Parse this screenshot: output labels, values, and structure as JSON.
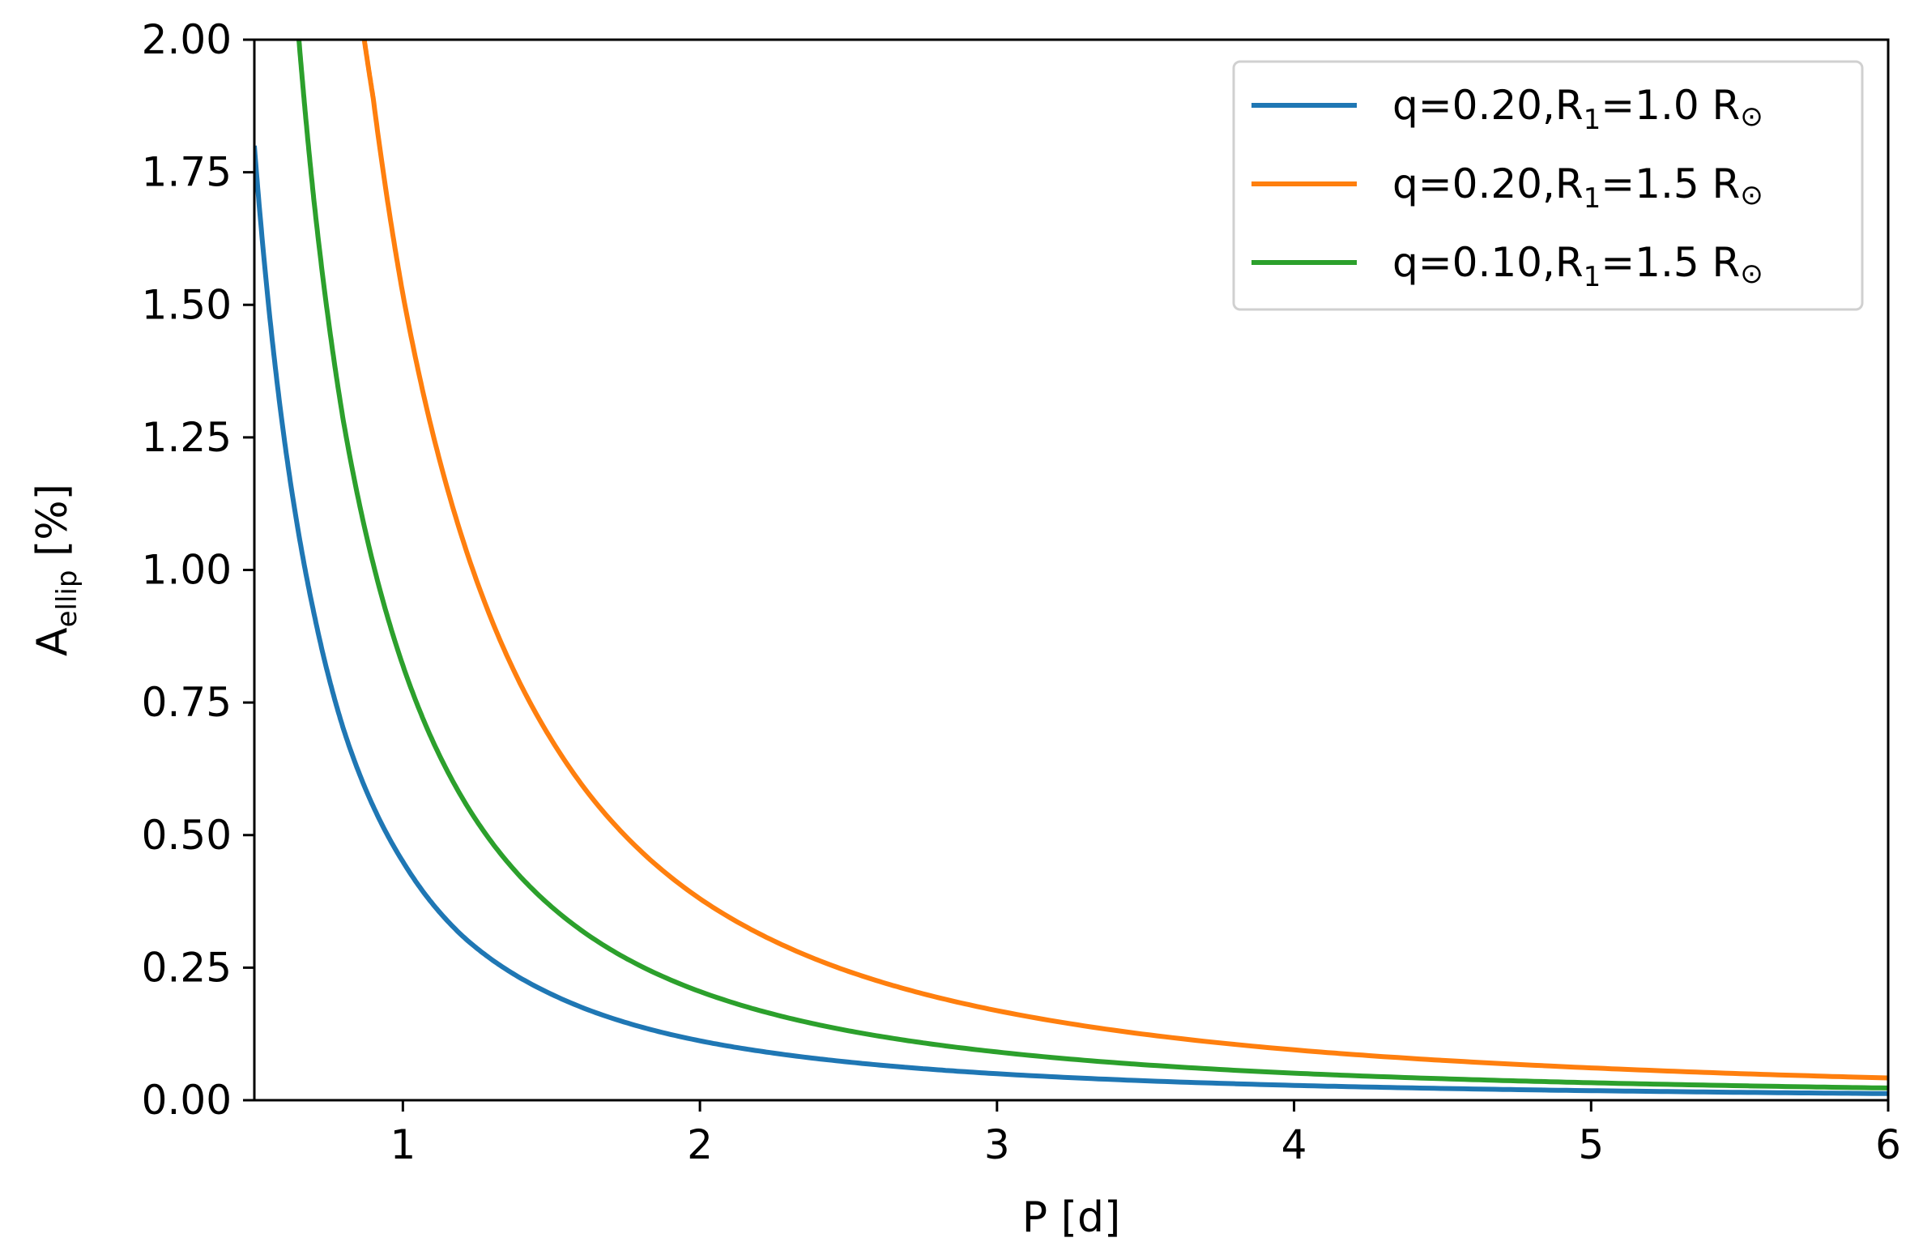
{
  "chart_data": {
    "type": "line",
    "xlabel": "P [d]",
    "ylabel": {
      "main": "A",
      "sub": "ellip",
      "rest": " [%]"
    },
    "xlim": [
      0.5,
      6
    ],
    "ylim": [
      0,
      2
    ],
    "xticks": [
      1,
      2,
      3,
      4,
      5,
      6
    ],
    "xtick_labels": [
      "1",
      "2",
      "3",
      "4",
      "5",
      "6"
    ],
    "yticks": [
      0,
      0.25,
      0.5,
      0.75,
      1.0,
      1.25,
      1.5,
      1.75,
      2.0
    ],
    "ytick_labels": [
      "0.00",
      "0.25",
      "0.50",
      "0.75",
      "1.00",
      "1.25",
      "1.50",
      "1.75",
      "2.00"
    ],
    "grid": false,
    "legend_position": "top-right",
    "series": [
      {
        "name": "q=0.20,R1=1.0 R⊙",
        "legend": {
          "pre": "q=0.20,R",
          "sub": "1",
          "post": "=1.0 R",
          "symbol": "⊙"
        },
        "color": "#1f77b4",
        "x": [
          0.5,
          0.6,
          0.7,
          0.8,
          1.0,
          1.2,
          1.5,
          2.0,
          2.5,
          3.0,
          4.0,
          5.0,
          6.0
        ],
        "y": [
          1.8,
          1.25,
          0.92,
          0.7,
          0.45,
          0.31,
          0.2,
          0.112,
          0.072,
          0.05,
          0.028,
          0.018,
          0.0125
        ]
      },
      {
        "name": "q=0.20,R1=1.5 R⊙",
        "legend": {
          "pre": "q=0.20,R",
          "sub": "1",
          "post": "=1.5 R",
          "symbol": "⊙"
        },
        "color": "#ff7f0e",
        "x": [
          0.87,
          0.9,
          1.0,
          1.2,
          1.5,
          2.0,
          2.5,
          3.0,
          4.0,
          5.0,
          6.0
        ],
        "y": [
          2.0,
          1.89,
          1.52,
          1.06,
          0.68,
          0.38,
          0.243,
          0.169,
          0.095,
          0.061,
          0.042
        ]
      },
      {
        "name": "q=0.10,R1=1.5 R⊙",
        "legend": {
          "pre": "q=0.10,R",
          "sub": "1",
          "post": "=1.5 R",
          "symbol": "⊙"
        },
        "color": "#2ca02c",
        "x": [
          0.65,
          0.7,
          0.8,
          1.0,
          1.2,
          1.5,
          2.0,
          2.5,
          3.0,
          4.0,
          5.0,
          6.0
        ],
        "y": [
          2.0,
          1.7,
          1.28,
          0.82,
          0.57,
          0.365,
          0.205,
          0.131,
          0.091,
          0.051,
          0.033,
          0.023
        ]
      }
    ]
  }
}
